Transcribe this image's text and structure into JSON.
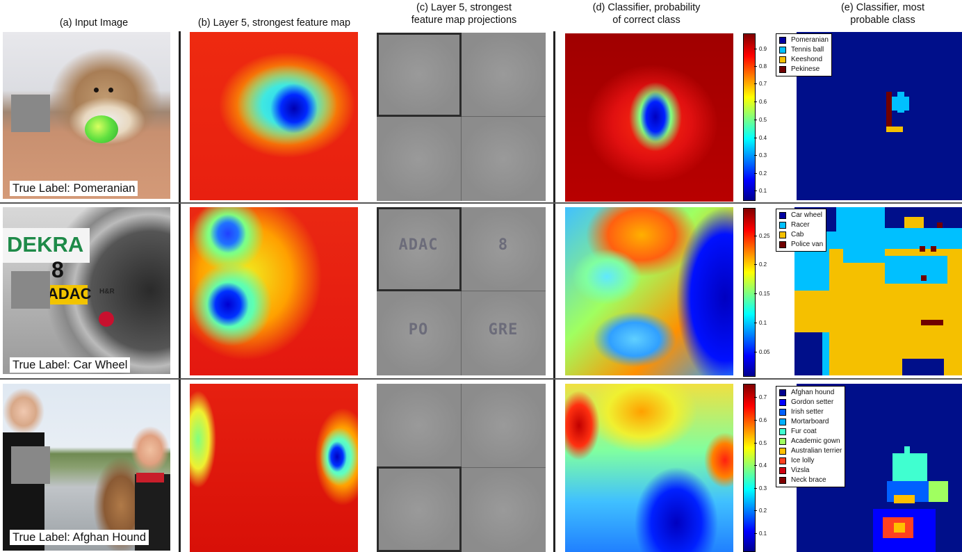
{
  "columns": [
    {
      "label": "(a) Input Image"
    },
    {
      "label": "(b) Layer 5, strongest feature map"
    },
    {
      "label": "(c) Layer 5, strongest\nfeature map projections"
    },
    {
      "label": "(d) Classifier, probability\nof correct class"
    },
    {
      "label": "(e) Classifier, most\nprobable class"
    }
  ],
  "rows": [
    {
      "true_label": "True Label: Pomeranian",
      "projection_glyphs": [
        "",
        "",
        "",
        ""
      ],
      "colorbar_ticks": [
        "0.9",
        "0.8",
        "0.7",
        "0.6",
        "0.5",
        "0.4",
        "0.3",
        "0.2",
        "0.1"
      ],
      "legend": [
        {
          "label": "Pomeranian",
          "color": "#0000a0"
        },
        {
          "label": "Tennis ball",
          "color": "#00c0ff"
        },
        {
          "label": "Keeshond",
          "color": "#f5c000"
        },
        {
          "label": "Pekinese",
          "color": "#700000"
        }
      ]
    },
    {
      "true_label": "True Label: Car Wheel",
      "photo_text": {
        "banner": "DEKRA",
        "number": "8",
        "tag": "ADAC",
        "brand": "H&R"
      },
      "projection_glyphs": [
        "ADAC",
        "8",
        "PO",
        "GRE"
      ],
      "colorbar_ticks": [
        "0.25",
        "0.2",
        "0.15",
        "0.1",
        "0.05"
      ],
      "legend": [
        {
          "label": "Car wheel",
          "color": "#0000a0"
        },
        {
          "label": "Racer",
          "color": "#00c0ff"
        },
        {
          "label": "Cab",
          "color": "#f5c000"
        },
        {
          "label": "Police van",
          "color": "#700000"
        }
      ]
    },
    {
      "true_label": "True Label: Afghan Hound",
      "projection_glyphs": [
        "",
        "",
        "",
        ""
      ],
      "colorbar_ticks": [
        "0.7",
        "0.6",
        "0.5",
        "0.4",
        "0.3",
        "0.2",
        "0.1"
      ],
      "legend": [
        {
          "label": "Afghan hound",
          "color": "#00008f"
        },
        {
          "label": "Gordon setter",
          "color": "#0000ff"
        },
        {
          "label": "Irish setter",
          "color": "#0060ff"
        },
        {
          "label": "Mortarboard",
          "color": "#00b0ff"
        },
        {
          "label": "Fur coat",
          "color": "#40ffd0"
        },
        {
          "label": "Academic gown",
          "color": "#a0ff60"
        },
        {
          "label": "Australian terrier",
          "color": "#ffc000"
        },
        {
          "label": "Ice lolly",
          "color": "#ff4020"
        },
        {
          "label": "Vizsla",
          "color": "#d00010"
        },
        {
          "label": "Neck brace",
          "color": "#800000"
        }
      ]
    }
  ]
}
